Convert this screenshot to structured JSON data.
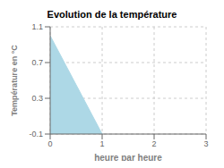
{
  "chart_data": {
    "type": "area",
    "title": "Evolution de la température",
    "x_label": "heure par heure",
    "y_label": "Température en °C",
    "x": [
      0,
      1
    ],
    "values": [
      1.0,
      -0.1
    ],
    "color": "#add8e6",
    "xlim": [
      0,
      3
    ],
    "ylim": [
      -0.1,
      1.1
    ],
    "xticks": [
      0,
      1,
      2,
      3
    ],
    "yticks": [
      -0.1,
      0.3,
      0.7,
      1.1
    ],
    "grid": true
  }
}
